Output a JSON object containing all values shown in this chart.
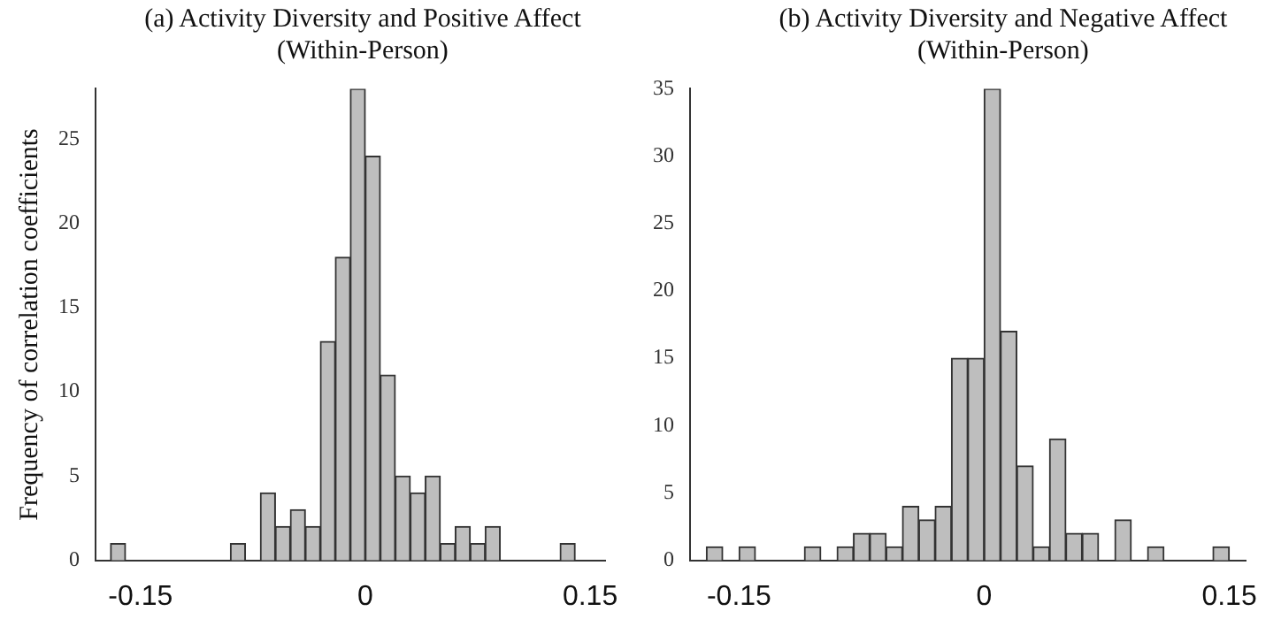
{
  "chart_data": [
    {
      "type": "histogram",
      "title": "(a) Activity Diversity and Positive Affect (Within-Person)",
      "ylabel": "Frequency of correlation coefficients",
      "color": "#bebebe",
      "bins": [
        -0.17,
        -0.16,
        -0.15,
        -0.14,
        -0.13,
        -0.12,
        -0.11,
        -0.1,
        -0.09,
        -0.08,
        -0.07,
        -0.06,
        -0.05,
        -0.04,
        -0.03,
        -0.02,
        -0.01,
        0,
        0.01,
        0.02,
        0.03,
        0.04,
        0.05,
        0.06,
        0.07,
        0.08,
        0.09,
        0.1,
        0.11,
        0.12,
        0.13,
        0.14
      ],
      "values": [
        1,
        0,
        0,
        0,
        0,
        0,
        0,
        0,
        1,
        0,
        4,
        2,
        3,
        2,
        13,
        18,
        28,
        24,
        11,
        5,
        4,
        5,
        1,
        2,
        1,
        2,
        0,
        0,
        0,
        0,
        1
      ],
      "xlim": [
        -0.18,
        0.16
      ],
      "xticks": [
        -0.15,
        0,
        0.15
      ],
      "ylim": [
        0,
        28
      ],
      "yticks": [
        0,
        5,
        10,
        15,
        20,
        25
      ],
      "grid": false,
      "legend": false
    },
    {
      "type": "histogram",
      "title": "(b) Activity Diversity and Negative Affect (Within-Person)",
      "color": "#bebebe",
      "bins": [
        -0.17,
        -0.16,
        -0.15,
        -0.14,
        -0.13,
        -0.12,
        -0.11,
        -0.1,
        -0.09,
        -0.08,
        -0.07,
        -0.06,
        -0.05,
        -0.04,
        -0.03,
        -0.02,
        -0.01,
        0,
        0.01,
        0.02,
        0.03,
        0.04,
        0.05,
        0.06,
        0.07,
        0.08,
        0.09,
        0.1,
        0.11,
        0.12,
        0.13,
        0.14,
        0.15
      ],
      "values": [
        1,
        0,
        1,
        0,
        0,
        0,
        1,
        0,
        1,
        2,
        2,
        1,
        4,
        3,
        4,
        15,
        15,
        35,
        17,
        7,
        1,
        9,
        2,
        2,
        0,
        3,
        0,
        1,
        0,
        0,
        0,
        1
      ],
      "xlim": [
        -0.18,
        0.16
      ],
      "xticks": [
        -0.15,
        0,
        0.15
      ],
      "ylim": [
        0,
        35
      ],
      "yticks": [
        0,
        5,
        10,
        15,
        20,
        25,
        30,
        35
      ],
      "grid": false,
      "legend": false
    }
  ]
}
